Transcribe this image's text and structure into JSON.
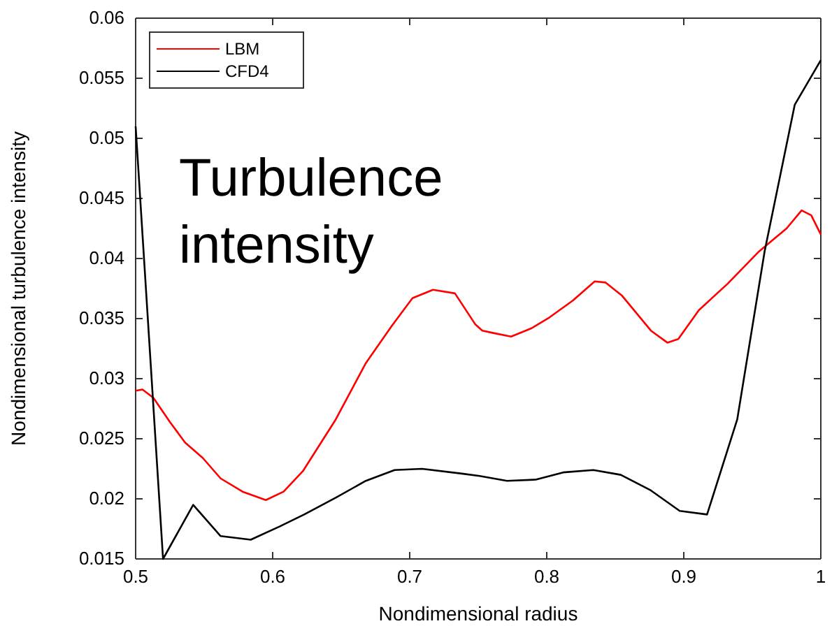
{
  "chart_data": {
    "type": "line",
    "xlabel": "Nondimensional radius",
    "ylabel": "Nondimensional turbulence intensity",
    "annotations": [
      "Turbulence intensity"
    ],
    "xlim": [
      0.5,
      1
    ],
    "xticks": [
      0.5,
      0.6,
      0.7,
      0.8,
      0.9,
      1
    ],
    "ylim": [
      0.015,
      0.06
    ],
    "yticks": [
      0.015,
      0.02,
      0.025,
      0.03,
      0.035,
      0.04,
      0.045,
      0.05,
      0.055,
      0.06
    ],
    "grid": false,
    "legend": "top left",
    "line_style": "solid",
    "marker": "none",
    "series": [
      {
        "name": "LBM",
        "color": "#ff0000",
        "x": [
          0.5,
          0.505,
          0.513,
          0.525,
          0.536,
          0.549,
          0.562,
          0.578,
          0.595,
          0.608,
          0.622,
          0.646,
          0.668,
          0.687,
          0.702,
          0.717,
          0.733,
          0.748,
          0.753,
          0.761,
          0.774,
          0.789,
          0.802,
          0.819,
          0.835,
          0.843,
          0.855,
          0.876,
          0.888,
          0.896,
          0.911,
          0.932,
          0.955,
          0.975,
          0.986,
          0.993,
          1.0
        ],
        "values": [
          0.029,
          0.0291,
          0.0284,
          0.0264,
          0.0247,
          0.0234,
          0.0217,
          0.0206,
          0.0199,
          0.0206,
          0.0223,
          0.0266,
          0.0313,
          0.0344,
          0.0367,
          0.0374,
          0.0371,
          0.0345,
          0.034,
          0.0338,
          0.0335,
          0.0342,
          0.0351,
          0.0365,
          0.0381,
          0.038,
          0.0369,
          0.034,
          0.033,
          0.0333,
          0.0357,
          0.0379,
          0.0406,
          0.0425,
          0.044,
          0.0436,
          0.042
        ]
      },
      {
        "name": "CFD4",
        "color": "#000000",
        "x": [
          0.5,
          0.52,
          0.542,
          0.562,
          0.584,
          0.605,
          0.623,
          0.646,
          0.668,
          0.689,
          0.709,
          0.738,
          0.751,
          0.771,
          0.792,
          0.812,
          0.834,
          0.854,
          0.876,
          0.897,
          0.917,
          0.939,
          0.959,
          0.981,
          1.0
        ],
        "values": [
          0.051,
          0.015,
          0.0195,
          0.0169,
          0.0166,
          0.0177,
          0.0187,
          0.0201,
          0.0215,
          0.0224,
          0.0225,
          0.0221,
          0.0219,
          0.0215,
          0.0216,
          0.0222,
          0.0224,
          0.022,
          0.0207,
          0.019,
          0.0187,
          0.0266,
          0.0406,
          0.0528,
          0.0565
        ]
      }
    ]
  }
}
